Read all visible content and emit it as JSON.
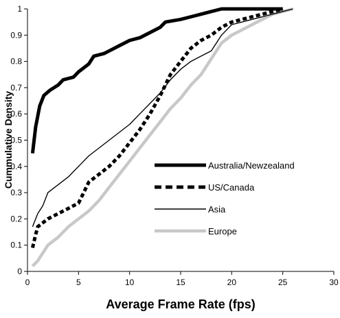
{
  "chart_data": {
    "type": "line",
    "xlabel": "Average Frame Rate (fps)",
    "ylabel": "Cummulative Density",
    "xlim": [
      0,
      30
    ],
    "ylim": [
      0,
      1
    ],
    "x_ticks": [
      "0",
      "5",
      "10",
      "15",
      "20",
      "25",
      "30"
    ],
    "y_ticks": [
      "0",
      "0.1",
      "0.2",
      "0.3",
      "0.4",
      "0.5",
      "0.6",
      "0.7",
      "0.8",
      "0.9",
      "1"
    ],
    "grid": false,
    "legend_position": "center-right",
    "series": [
      {
        "name": "Australia/Newzealand",
        "color": "#000000",
        "style": "thick-solid",
        "points": [
          [
            0.5,
            0.45
          ],
          [
            0.8,
            0.55
          ],
          [
            1.2,
            0.63
          ],
          [
            1.6,
            0.67
          ],
          [
            2.2,
            0.69
          ],
          [
            3,
            0.71
          ],
          [
            3.5,
            0.73
          ],
          [
            4.5,
            0.74
          ],
          [
            5,
            0.76
          ],
          [
            6,
            0.79
          ],
          [
            6.5,
            0.82
          ],
          [
            7.5,
            0.83
          ],
          [
            8,
            0.84
          ],
          [
            9,
            0.86
          ],
          [
            10,
            0.88
          ],
          [
            11,
            0.89
          ],
          [
            12,
            0.91
          ],
          [
            13,
            0.93
          ],
          [
            13.5,
            0.95
          ],
          [
            15,
            0.96
          ],
          [
            16,
            0.97
          ],
          [
            17,
            0.98
          ],
          [
            18,
            0.99
          ],
          [
            19,
            1.0
          ],
          [
            22,
            1.0
          ],
          [
            25,
            1.0
          ]
        ]
      },
      {
        "name": "US/Canada",
        "color": "#000000",
        "style": "thick-dashed",
        "points": [
          [
            0.5,
            0.09
          ],
          [
            0.8,
            0.14
          ],
          [
            1,
            0.17
          ],
          [
            2,
            0.2
          ],
          [
            3,
            0.22
          ],
          [
            4,
            0.24
          ],
          [
            5,
            0.26
          ],
          [
            5.5,
            0.3
          ],
          [
            6,
            0.34
          ],
          [
            7,
            0.37
          ],
          [
            8,
            0.4
          ],
          [
            9,
            0.44
          ],
          [
            10,
            0.49
          ],
          [
            11,
            0.54
          ],
          [
            12,
            0.6
          ],
          [
            13,
            0.67
          ],
          [
            14,
            0.75
          ],
          [
            15,
            0.8
          ],
          [
            16,
            0.85
          ],
          [
            17,
            0.88
          ],
          [
            18,
            0.9
          ],
          [
            19,
            0.93
          ],
          [
            20,
            0.95
          ],
          [
            21,
            0.96
          ],
          [
            22,
            0.97
          ],
          [
            23,
            0.98
          ],
          [
            24,
            0.99
          ],
          [
            25,
            1.0
          ]
        ]
      },
      {
        "name": "Asia",
        "color": "#000000",
        "style": "thin-solid",
        "points": [
          [
            0.5,
            0.17
          ],
          [
            1,
            0.22
          ],
          [
            1.5,
            0.25
          ],
          [
            2,
            0.3
          ],
          [
            3,
            0.33
          ],
          [
            4,
            0.36
          ],
          [
            5,
            0.4
          ],
          [
            6,
            0.44
          ],
          [
            7,
            0.47
          ],
          [
            8,
            0.5
          ],
          [
            9,
            0.53
          ],
          [
            10,
            0.56
          ],
          [
            11,
            0.6
          ],
          [
            12,
            0.64
          ],
          [
            13,
            0.68
          ],
          [
            14,
            0.73
          ],
          [
            15,
            0.77
          ],
          [
            16,
            0.8
          ],
          [
            17,
            0.82
          ],
          [
            18,
            0.84
          ],
          [
            19,
            0.9
          ],
          [
            20,
            0.94
          ],
          [
            21,
            0.95
          ],
          [
            22,
            0.96
          ],
          [
            23,
            0.97
          ],
          [
            24,
            0.98
          ],
          [
            25,
            0.99
          ],
          [
            26,
            1.0
          ]
        ]
      },
      {
        "name": "Europe",
        "color": "#c8c8c8",
        "style": "thick-solid-light",
        "points": [
          [
            0.5,
            0.02
          ],
          [
            1,
            0.04
          ],
          [
            1.5,
            0.07
          ],
          [
            2,
            0.1
          ],
          [
            3,
            0.13
          ],
          [
            4,
            0.17
          ],
          [
            5,
            0.2
          ],
          [
            6,
            0.23
          ],
          [
            7,
            0.27
          ],
          [
            8,
            0.32
          ],
          [
            9,
            0.37
          ],
          [
            10,
            0.42
          ],
          [
            11,
            0.47
          ],
          [
            12,
            0.52
          ],
          [
            13,
            0.57
          ],
          [
            14,
            0.62
          ],
          [
            15,
            0.66
          ],
          [
            16,
            0.71
          ],
          [
            17,
            0.75
          ],
          [
            18,
            0.81
          ],
          [
            19,
            0.87
          ],
          [
            20,
            0.9
          ],
          [
            21,
            0.92
          ],
          [
            22,
            0.94
          ],
          [
            23,
            0.96
          ],
          [
            24,
            0.98
          ],
          [
            25,
            0.99
          ],
          [
            26,
            1.0
          ]
        ]
      }
    ]
  }
}
